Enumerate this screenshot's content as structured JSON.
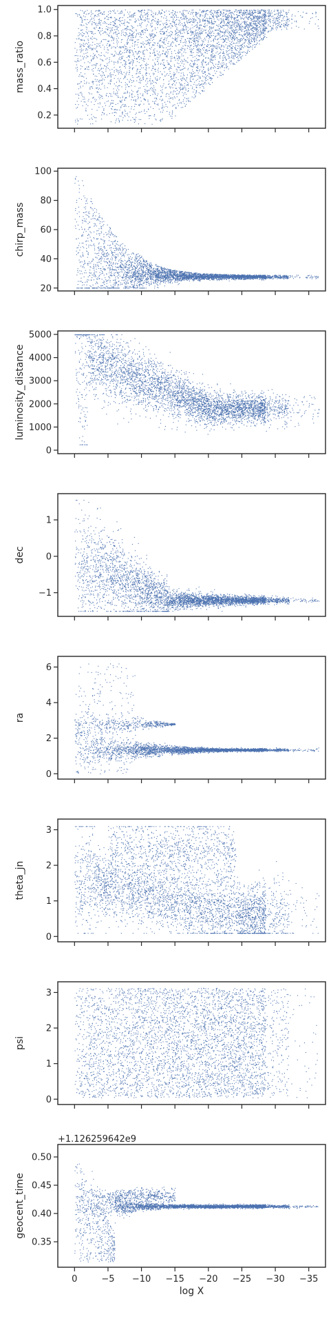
{
  "chart_data": {
    "type": "scatter",
    "style": "seaborn ticks",
    "marker_color": "#4c72b0",
    "sharex": true,
    "xlabel": "log X",
    "xlim": [
      2.5,
      -37.5
    ],
    "xticks": [
      0,
      -5,
      -10,
      -15,
      -20,
      -25,
      -30,
      -35
    ],
    "xtick_labels": [
      "0",
      "−5",
      "−10",
      "−15",
      "−20",
      "−25",
      "−30",
      "−35"
    ],
    "panels": [
      {
        "ylabel": "mass_ratio",
        "ylim": [
          0.1,
          1.03
        ],
        "yticks": [
          0.2,
          0.4,
          0.6,
          0.8,
          1.0
        ],
        "ytick_labels": [
          "0.2",
          "0.4",
          "0.6",
          "0.8",
          "1.0"
        ],
        "offset_text": ""
      },
      {
        "ylabel": "chirp_mass",
        "ylim": [
          18,
          102
        ],
        "yticks": [
          20,
          40,
          60,
          80,
          100
        ],
        "ytick_labels": [
          "20",
          "40",
          "60",
          "80",
          "100"
        ],
        "offset_text": ""
      },
      {
        "ylabel": "luminosity_distance",
        "ylim": [
          -150,
          5150
        ],
        "yticks": [
          0,
          1000,
          2000,
          3000,
          4000,
          5000
        ],
        "ytick_labels": [
          "0",
          "1000",
          "2000",
          "3000",
          "4000",
          "5000"
        ],
        "offset_text": ""
      },
      {
        "ylabel": "dec",
        "ylim": [
          -1.65,
          1.72
        ],
        "yticks": [
          -1,
          0,
          1
        ],
        "ytick_labels": [
          "−1",
          "0",
          "1"
        ],
        "offset_text": ""
      },
      {
        "ylabel": "ra",
        "ylim": [
          -0.3,
          6.6
        ],
        "yticks": [
          0,
          2,
          4,
          6
        ],
        "ytick_labels": [
          "0",
          "2",
          "4",
          "6"
        ],
        "offset_text": ""
      },
      {
        "ylabel": "theta_jn",
        "ylim": [
          -0.15,
          3.3
        ],
        "yticks": [
          0,
          1,
          2,
          3
        ],
        "ytick_labels": [
          "0",
          "1",
          "2",
          "3"
        ],
        "offset_text": ""
      },
      {
        "ylabel": "psi",
        "ylim": [
          -0.15,
          3.3
        ],
        "yticks": [
          0,
          1,
          2,
          3
        ],
        "ytick_labels": [
          "0",
          "1",
          "2",
          "3"
        ],
        "offset_text": ""
      },
      {
        "ylabel": "geocent_time",
        "ylim": [
          0.305,
          0.522
        ],
        "yticks": [
          0.35,
          0.4,
          0.45,
          0.5
        ],
        "ytick_labels": [
          "0.35",
          "0.40",
          "0.45",
          "0.50"
        ],
        "offset_text": "+1.126259642e9"
      }
    ]
  }
}
